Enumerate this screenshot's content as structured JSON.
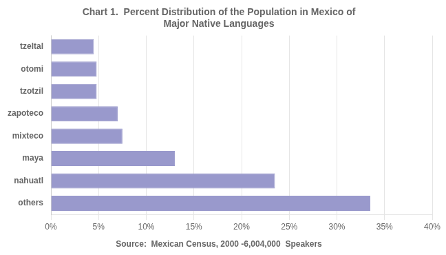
{
  "chart_data": {
    "type": "bar",
    "orientation": "horizontal",
    "title": "Chart 1.  Percent Distribution of the Population in Mexico of\nMajor Native Languages",
    "annotations": [
      "Source:  Mexican Census, 2000 -6,004,000  Speakers"
    ],
    "categories": [
      "others",
      "nahuatl",
      "maya",
      "mixteco",
      "zapoteco",
      "tzotzil",
      "otomi",
      "tzeltal"
    ],
    "values": [
      33.5,
      23.5,
      13.0,
      7.5,
      7.0,
      4.8,
      4.8,
      4.5
    ],
    "color": "#9999cc",
    "xlim": [
      0,
      40
    ],
    "xticks": [
      {
        "value": 0,
        "label": "0%"
      },
      {
        "value": 5,
        "label": "5%"
      },
      {
        "value": 10,
        "label": "10%"
      },
      {
        "value": 15,
        "label": "15%"
      },
      {
        "value": 20,
        "label": "20%"
      },
      {
        "value": 25,
        "label": "25%"
      },
      {
        "value": 30,
        "label": "30%"
      },
      {
        "value": 35,
        "label": "35%"
      },
      {
        "value": 40,
        "label": "40%"
      }
    ],
    "grid": true
  }
}
